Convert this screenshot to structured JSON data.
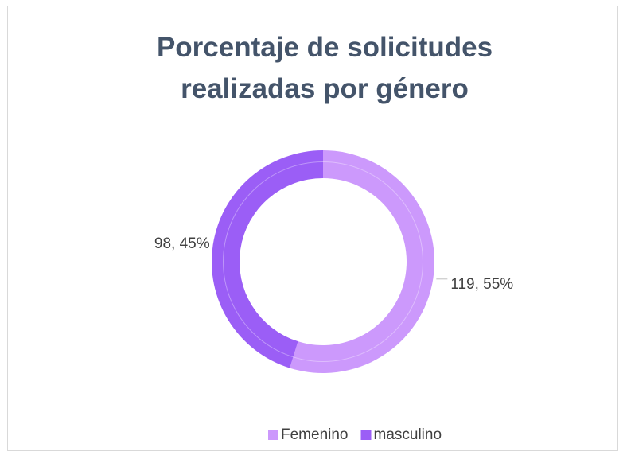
{
  "chart_data": {
    "type": "donut",
    "title": "Porcentaje de solicitudes realizadas por género",
    "categories": [
      "Femenino",
      "masculino"
    ],
    "values": [
      119,
      98
    ],
    "value_labels": [
      "119, 55%",
      "98, 45%"
    ],
    "colors": [
      "#cc99fc",
      "#9b5ef6"
    ],
    "legend": "bottom"
  }
}
